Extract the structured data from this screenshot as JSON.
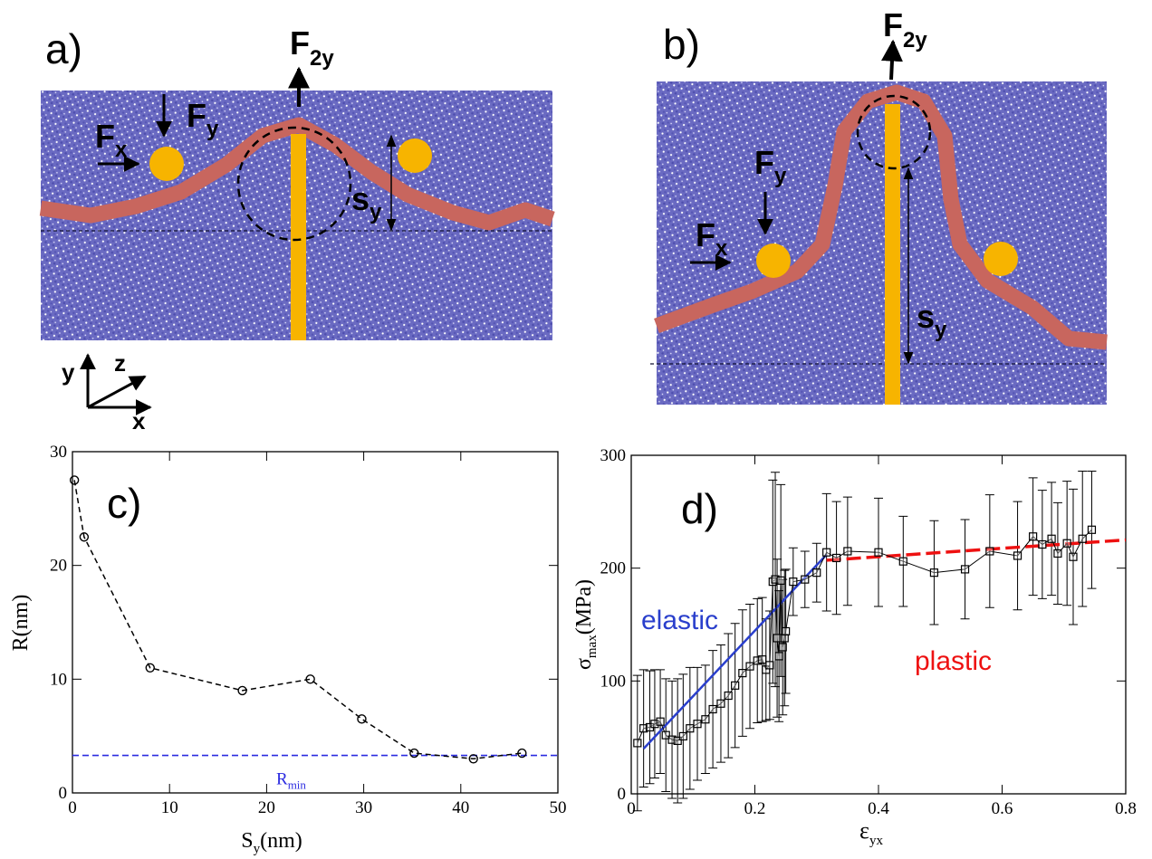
{
  "panels": {
    "a": {
      "label": "a)",
      "f2y": [
        "F",
        "2y"
      ],
      "fx": [
        "F",
        "x"
      ],
      "fy": [
        "F",
        "y"
      ],
      "sy": [
        "s",
        "y"
      ],
      "axes": [
        "y",
        "z",
        "x"
      ]
    },
    "b": {
      "label": "b)",
      "f2y": [
        "F",
        "2y"
      ],
      "fx": [
        "F",
        "x"
      ],
      "fy": [
        "F",
        "y"
      ],
      "sy": [
        "s",
        "y"
      ]
    }
  },
  "chart_data": [
    {
      "type": "line",
      "label": "c)",
      "xlabel": [
        "S",
        "y",
        "(nm)"
      ],
      "ylabel": "R(nm)",
      "x": [
        0.2,
        1.2,
        8,
        17.5,
        24.5,
        29.8,
        35.2,
        41.3,
        46.3
      ],
      "series": [
        {
          "color": "#000000",
          "dashed": true,
          "values": [
            27.5,
            22.5,
            11,
            9,
            10,
            6.5,
            3.5,
            3,
            3.5
          ]
        }
      ],
      "reference_line": {
        "value": 3.3,
        "color": "#2a2ae0",
        "label": [
          "R",
          "min"
        ]
      },
      "xlim": [
        0,
        50
      ],
      "xticks": [
        0,
        10,
        20,
        30,
        40,
        50
      ],
      "ylim": [
        0,
        30
      ],
      "yticks": [
        0,
        10,
        20,
        30
      ]
    },
    {
      "type": "errorbar",
      "label": "d)",
      "xlabel": [
        "ε",
        "yx"
      ],
      "ylabel": [
        "σ",
        "max",
        "(MPa)"
      ],
      "x": [
        0.01,
        0.02,
        0.03,
        0.038,
        0.047,
        0.056,
        0.066,
        0.075,
        0.084,
        0.095,
        0.107,
        0.12,
        0.132,
        0.145,
        0.157,
        0.168,
        0.18,
        0.192,
        0.204,
        0.212,
        0.218,
        0.224,
        0.229,
        0.233,
        0.236,
        0.239,
        0.242,
        0.245,
        0.248,
        0.25,
        0.262,
        0.281,
        0.3,
        0.316,
        0.332,
        0.35,
        0.4,
        0.44,
        0.49,
        0.54,
        0.58,
        0.625,
        0.65,
        0.665,
        0.68,
        0.69,
        0.705,
        0.715,
        0.73,
        0.745
      ],
      "series": [
        {
          "color": "#000000",
          "values": [
            45,
            58,
            59,
            62,
            64,
            52,
            48,
            47,
            51,
            58,
            62,
            66,
            75,
            80,
            87,
            96,
            107,
            113,
            118,
            119,
            110,
            114,
            188,
            190,
            138,
            122,
            189,
            130,
            138,
            144,
            188,
            190,
            196,
            214,
            209,
            215,
            214,
            206,
            196,
            199,
            215,
            211,
            228,
            221,
            226,
            213,
            222,
            210,
            226,
            234
          ],
          "errors": [
            60,
            52,
            50,
            48,
            46,
            50,
            52,
            55,
            55,
            54,
            50,
            48,
            52,
            52,
            55,
            55,
            56,
            55,
            55,
            55,
            45,
            48,
            90,
            95,
            70,
            58,
            85,
            60,
            60,
            55,
            30,
            25,
            26,
            52,
            50,
            48,
            48,
            40,
            46,
            44,
            50,
            48,
            52,
            48,
            50,
            45,
            55,
            60,
            60,
            52
          ]
        }
      ],
      "fits": [
        {
          "name": "elastic",
          "color": "#2a3fcc",
          "x": [
            0.02,
            0.316
          ],
          "values": [
            40,
            212
          ]
        },
        {
          "name": "plastic",
          "color": "#ee1111",
          "dashed": true,
          "x": [
            0.316,
            0.8
          ],
          "values": [
            207,
            225
          ]
        }
      ],
      "xlim": [
        0,
        0.8
      ],
      "xticks": [
        0,
        0.2,
        0.4,
        0.6,
        0.8
      ],
      "ylim": [
        0,
        300
      ],
      "yticks": [
        0,
        100,
        200,
        300
      ]
    }
  ]
}
